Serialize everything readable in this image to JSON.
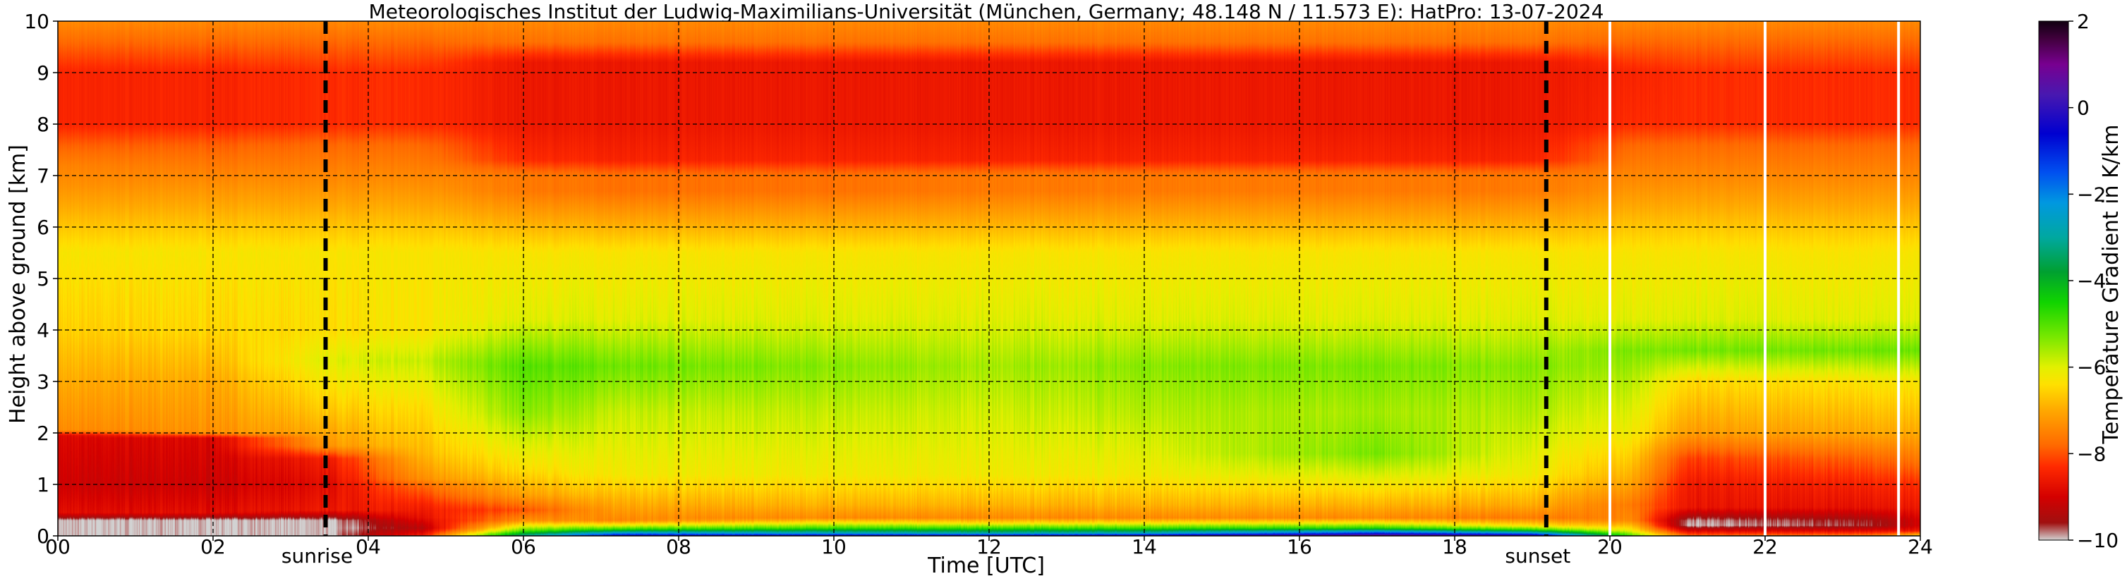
{
  "chart_data": {
    "type": "heatmap",
    "title": "Meteorologisches Institut der Ludwig-Maximilians-Universität (München, Germany; 48.148 N / 11.573 E):    HatPro: 13-07-2024",
    "xlabel": "Time [UTC]",
    "ylabel": "Height above ground [km]",
    "xlim": [
      0,
      24
    ],
    "ylim": [
      0,
      10
    ],
    "x_ticks": [
      {
        "value": 0,
        "label": "00"
      },
      {
        "value": 2,
        "label": "02"
      },
      {
        "value": 4,
        "label": "04"
      },
      {
        "value": 6,
        "label": "06"
      },
      {
        "value": 8,
        "label": "08"
      },
      {
        "value": 10,
        "label": "10"
      },
      {
        "value": 12,
        "label": "12"
      },
      {
        "value": 14,
        "label": "14"
      },
      {
        "value": 16,
        "label": "16"
      },
      {
        "value": 18,
        "label": "18"
      },
      {
        "value": 20,
        "label": "20"
      },
      {
        "value": 22,
        "label": "22"
      },
      {
        "value": 24,
        "label": "24"
      }
    ],
    "y_ticks": [
      {
        "value": 0,
        "label": "0"
      },
      {
        "value": 1,
        "label": "1"
      },
      {
        "value": 2,
        "label": "2"
      },
      {
        "value": 3,
        "label": "3"
      },
      {
        "value": 4,
        "label": "4"
      },
      {
        "value": 5,
        "label": "5"
      },
      {
        "value": 6,
        "label": "6"
      },
      {
        "value": 7,
        "label": "7"
      },
      {
        "value": 8,
        "label": "8"
      },
      {
        "value": 9,
        "label": "9"
      },
      {
        "value": 10,
        "label": "10"
      }
    ],
    "grid": true,
    "markers": [
      {
        "x": 3.45,
        "label": "sunrise"
      },
      {
        "x": 19.18,
        "label": "sunset"
      }
    ],
    "data_gaps": [
      20.0,
      22.0,
      23.72
    ],
    "colorbar": {
      "label": "Temperature Gradient in K/km",
      "range": [
        -10,
        2
      ],
      "ticks": [
        {
          "value": 2,
          "label": "2"
        },
        {
          "value": 0,
          "label": "0"
        },
        {
          "value": -2,
          "label": "−2"
        },
        {
          "value": -4,
          "label": "−4"
        },
        {
          "value": -6,
          "label": "−6"
        },
        {
          "value": -8,
          "label": "−8"
        },
        {
          "value": -10,
          "label": "−10"
        }
      ],
      "stops": [
        {
          "value": -10,
          "color": "#d2d2d2"
        },
        {
          "value": -9.6,
          "color": "#a01010"
        },
        {
          "value": -9.0,
          "color": "#d40000"
        },
        {
          "value": -8.3,
          "color": "#ff2a00"
        },
        {
          "value": -7.8,
          "color": "#ff6a00"
        },
        {
          "value": -7.0,
          "color": "#ffa800"
        },
        {
          "value": -6.4,
          "color": "#ffe000"
        },
        {
          "value": -6.0,
          "color": "#e2f000"
        },
        {
          "value": -5.3,
          "color": "#78e800"
        },
        {
          "value": -4.5,
          "color": "#10d400"
        },
        {
          "value": -3.8,
          "color": "#00a030"
        },
        {
          "value": -3.0,
          "color": "#00a8a0"
        },
        {
          "value": -2.2,
          "color": "#0098e0"
        },
        {
          "value": -1.5,
          "color": "#0050f0"
        },
        {
          "value": -0.6,
          "color": "#0000d0"
        },
        {
          "value": 0.3,
          "color": "#4818b0"
        },
        {
          "value": 1.0,
          "color": "#780090"
        },
        {
          "value": 1.6,
          "color": "#40003c"
        },
        {
          "value": 2.0,
          "color": "#100010"
        }
      ]
    },
    "profiles": [
      {
        "t": 0,
        "h": [
          0,
          0.1,
          0.3,
          0.45,
          1,
          1.95,
          2.05,
          3,
          4,
          5.5,
          6.8,
          7.2,
          7.6,
          8.0,
          9.0,
          9.6,
          10
        ],
        "v": [
          -10,
          -10,
          -10,
          -8.8,
          -9.1,
          -8.9,
          -7.4,
          -7.0,
          -6.6,
          -6.3,
          -7.3,
          -7.5,
          -7.9,
          -8.4,
          -8.4,
          -7.8,
          -7.4
        ]
      },
      {
        "t": 2,
        "h": [
          0,
          0.1,
          0.3,
          0.45,
          1,
          1.9,
          2.0,
          3,
          4,
          5.5,
          6.8,
          7.2,
          7.6,
          8.0,
          9.0,
          9.6,
          10
        ],
        "v": [
          -10,
          -10,
          -10,
          -8.8,
          -9.1,
          -8.9,
          -7.3,
          -7.0,
          -6.5,
          -6.3,
          -7.3,
          -7.6,
          -7.9,
          -8.4,
          -8.4,
          -7.8,
          -7.4
        ]
      },
      {
        "t": 3.5,
        "h": [
          0,
          0.1,
          0.3,
          0.5,
          1,
          1.5,
          1.75,
          2.5,
          3.4,
          4,
          5.5,
          6.8,
          7.6,
          8.0,
          9.0,
          9.6,
          10
        ],
        "v": [
          -10,
          -10,
          -10,
          -8.6,
          -8.8,
          -8.5,
          -7.2,
          -6.6,
          -6.0,
          -6.4,
          -6.3,
          -7.3,
          -7.8,
          -8.3,
          -8.3,
          -7.8,
          -7.4
        ]
      },
      {
        "t": 4.7,
        "h": [
          0,
          0.15,
          0.35,
          0.6,
          1,
          1.1,
          1.6,
          2.5,
          3.4,
          4,
          5.5,
          6.8,
          7.6,
          8.0,
          9.0,
          9.6,
          10
        ],
        "v": [
          -8.5,
          -9.3,
          -8.7,
          -8.4,
          -7.7,
          -7.3,
          -6.8,
          -6.4,
          -5.8,
          -6.3,
          -6.3,
          -7.3,
          -7.8,
          -8.3,
          -8.3,
          -7.8,
          -7.4
        ]
      },
      {
        "t": 6.0,
        "h": [
          0,
          0.1,
          0.2,
          0.3,
          0.5,
          0.8,
          1.3,
          2.4,
          3.3,
          4.2,
          5.5,
          6.7,
          7.0,
          7.3,
          8.0,
          9.2,
          9.6,
          10
        ],
        "v": [
          -3,
          -5.0,
          -6.2,
          -7.3,
          -8.0,
          -7.1,
          -6.4,
          -5.4,
          -5.0,
          -6.0,
          -6.3,
          -7.6,
          -7.6,
          -8.3,
          -8.6,
          -8.6,
          -7.7,
          -7.4
        ]
      },
      {
        "t": 7.2,
        "h": [
          0,
          0.05,
          0.12,
          0.2,
          0.3,
          0.6,
          1.2,
          2.4,
          3.3,
          4.2,
          5.5,
          6.7,
          7.0,
          7.3,
          8.0,
          9.2,
          9.6,
          10
        ],
        "v": [
          -0.3,
          -2.0,
          -4.5,
          -6.0,
          -7.4,
          -7.0,
          -6.2,
          -5.8,
          -5.2,
          -6.0,
          -6.3,
          -7.7,
          -7.7,
          -8.4,
          -8.6,
          -8.6,
          -7.7,
          -7.4
        ]
      },
      {
        "t": 10,
        "h": [
          0,
          0.05,
          0.15,
          0.25,
          0.35,
          0.6,
          1.2,
          2.4,
          3.3,
          4.2,
          5.5,
          6.7,
          7.0,
          7.3,
          8.0,
          9.2,
          9.6,
          10
        ],
        "v": [
          0.0,
          -2.5,
          -4.8,
          -6.2,
          -7.4,
          -6.9,
          -6.2,
          -5.8,
          -5.4,
          -6.0,
          -6.3,
          -7.7,
          -7.7,
          -8.4,
          -8.6,
          -8.6,
          -7.7,
          -7.4
        ]
      },
      {
        "t": 12,
        "h": [
          0,
          0.05,
          0.15,
          0.25,
          0.35,
          0.6,
          1.2,
          2.4,
          3.3,
          4.2,
          5.5,
          6.7,
          7.0,
          7.3,
          8.0,
          9.2,
          9.6,
          10
        ],
        "v": [
          0.0,
          -2.8,
          -4.8,
          -6.4,
          -7.4,
          -6.9,
          -6.2,
          -5.9,
          -5.6,
          -6.0,
          -6.3,
          -7.6,
          -7.6,
          -8.4,
          -8.6,
          -8.6,
          -7.7,
          -7.4
        ]
      },
      {
        "t": 14,
        "h": [
          0,
          0.05,
          0.15,
          0.25,
          0.35,
          0.6,
          1.2,
          2.4,
          3.3,
          4.2,
          5.5,
          6.7,
          7.0,
          7.3,
          8.0,
          9.2,
          9.6,
          10
        ],
        "v": [
          0.3,
          -2.6,
          -4.8,
          -6.3,
          -7.4,
          -6.9,
          -6.2,
          -5.7,
          -5.4,
          -6.0,
          -6.3,
          -7.6,
          -7.6,
          -8.4,
          -8.6,
          -8.6,
          -7.7,
          -7.4
        ]
      },
      {
        "t": 17,
        "h": [
          0,
          0.05,
          0.15,
          0.25,
          0.35,
          0.6,
          1.6,
          2.4,
          3.3,
          4.2,
          5.5,
          6.7,
          7.0,
          7.3,
          8.0,
          9.2,
          9.6,
          10
        ],
        "v": [
          1.5,
          -1.0,
          -4.6,
          -6.2,
          -7.4,
          -6.9,
          -5.3,
          -5.6,
          -5.3,
          -6.0,
          -6.3,
          -7.6,
          -7.6,
          -8.4,
          -8.6,
          -8.6,
          -7.7,
          -7.4
        ]
      },
      {
        "t": 19,
        "h": [
          0,
          0.05,
          0.12,
          0.2,
          0.35,
          0.6,
          1.2,
          2.4,
          3.3,
          4.2,
          5.5,
          6.7,
          7.0,
          7.3,
          8.0,
          9.2,
          9.6,
          10
        ],
        "v": [
          0.5,
          -2.0,
          -4.8,
          -6.4,
          -7.6,
          -7.0,
          -6.2,
          -5.7,
          -5.4,
          -6.0,
          -6.3,
          -7.6,
          -7.6,
          -8.4,
          -8.6,
          -8.6,
          -7.7,
          -7.4
        ]
      },
      {
        "t": 20.3,
        "h": [
          0,
          0.1,
          0.3,
          0.6,
          1.1,
          2.0,
          3.0,
          3.6,
          4.2,
          5.5,
          6.8,
          7.6,
          8.0,
          9.0,
          9.6,
          10
        ],
        "v": [
          -5.0,
          -6.2,
          -7.4,
          -7.6,
          -7.0,
          -6.2,
          -5.7,
          -5.3,
          -6.0,
          -6.3,
          -7.3,
          -7.8,
          -8.3,
          -8.4,
          -7.8,
          -7.4
        ]
      },
      {
        "t": 21.0,
        "h": [
          0,
          0.1,
          0.2,
          0.3,
          0.55,
          1.0,
          1.5,
          2.0,
          3.0,
          3.6,
          4.2,
          5.5,
          6.8,
          7.6,
          8.0,
          9.0,
          9.6,
          10
        ],
        "v": [
          -7.8,
          -9.0,
          -10,
          -9.9,
          -8.7,
          -8.6,
          -8.2,
          -7.2,
          -6.5,
          -5.3,
          -6.0,
          -6.3,
          -7.3,
          -7.8,
          -8.3,
          -8.3,
          -7.8,
          -7.4
        ]
      },
      {
        "t": 23.5,
        "h": [
          0,
          0.1,
          0.2,
          0.3,
          0.55,
          1.0,
          1.5,
          2.0,
          3.0,
          3.6,
          4.2,
          5.5,
          6.8,
          7.6,
          8.0,
          9.0,
          9.6,
          10
        ],
        "v": [
          -7.5,
          -8.8,
          -9.6,
          -9.5,
          -8.7,
          -8.4,
          -7.8,
          -7.0,
          -6.3,
          -5.2,
          -6.0,
          -6.3,
          -7.3,
          -7.8,
          -8.3,
          -8.3,
          -7.8,
          -7.4
        ]
      },
      {
        "t": 24,
        "h": [
          0,
          0.1,
          0.2,
          0.3,
          0.55,
          1.0,
          1.5,
          2.0,
          3.0,
          3.6,
          4.2,
          5.5,
          6.8,
          7.6,
          8.0,
          9.0,
          9.6,
          10
        ],
        "v": [
          -6.5,
          -8.6,
          -9.0,
          -9.0,
          -8.6,
          -8.3,
          -7.6,
          -7.0,
          -6.3,
          -5.2,
          -6.0,
          -6.3,
          -7.3,
          -7.8,
          -8.3,
          -8.3,
          -7.8,
          -7.4
        ]
      }
    ]
  }
}
